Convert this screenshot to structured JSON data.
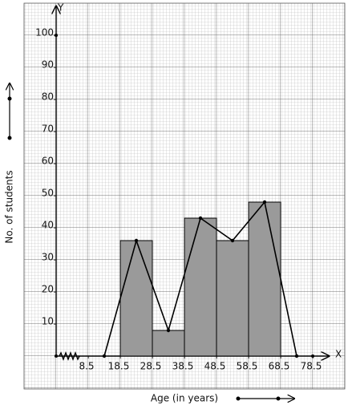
{
  "chart_data": {
    "type": "histogram",
    "xlabel": "Age (in years)",
    "ylabel": "No. of students",
    "x_axis_name": "X",
    "y_axis_name": "Y",
    "bins": [
      18.5,
      28.5,
      38.5,
      48.5,
      58.5,
      68.5
    ],
    "values": [
      36,
      8,
      43,
      36,
      48
    ],
    "color": "#9a9a9a",
    "polygon": {
      "x": [
        13.5,
        23.5,
        33.5,
        43.5,
        53.5,
        63.5,
        73.5
      ],
      "values": [
        0,
        36,
        8,
        43,
        36,
        48,
        0
      ],
      "color": "#000000"
    },
    "xlim": [
      -1.5,
      83.5
    ],
    "ylim": [
      0,
      110
    ],
    "xticks": [
      8.5,
      18.5,
      28.5,
      38.5,
      48.5,
      58.5,
      68.5,
      78.5
    ],
    "yticks": [
      10,
      20,
      30,
      40,
      50,
      60,
      70,
      80,
      90,
      100
    ],
    "grid": true
  }
}
